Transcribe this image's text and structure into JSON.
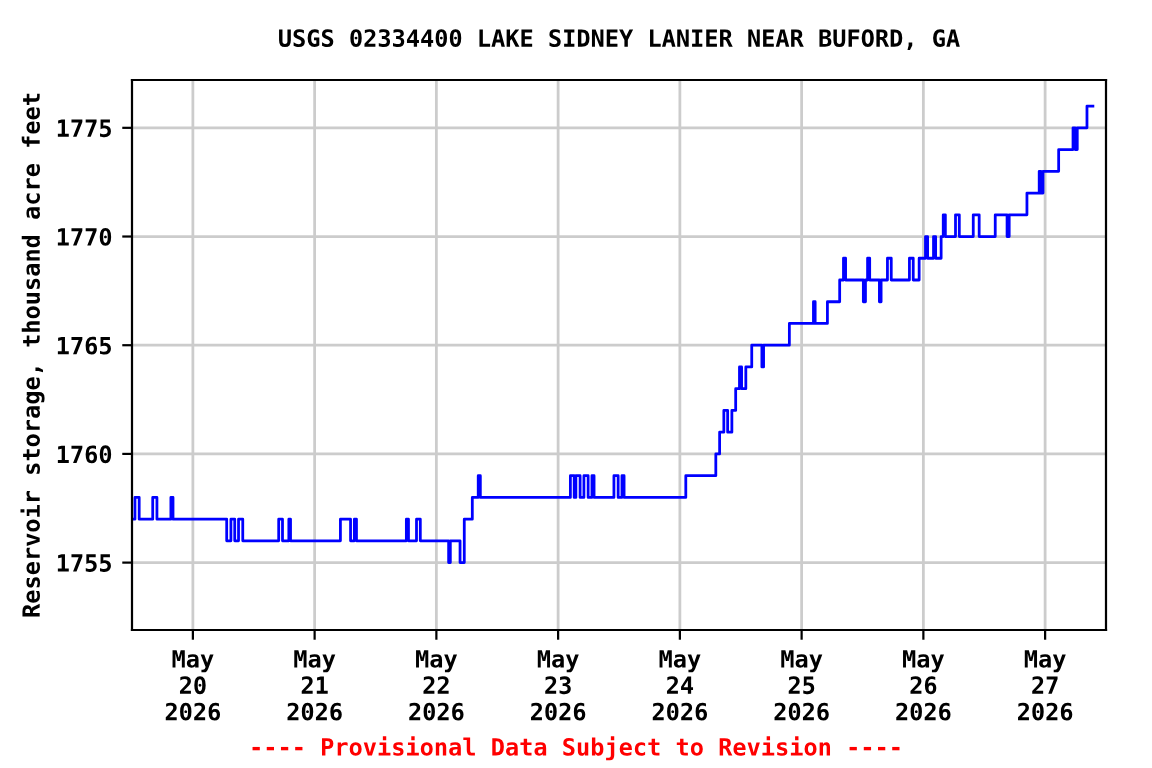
{
  "chart_data": {
    "type": "step",
    "title": "USGS 02334400 LAKE SIDNEY LANIER NEAR BUFORD, GA",
    "ylabel": "Reservoir storage, thousand acre feet",
    "x": [
      "2026-05-19T12:15",
      "2026-05-19T12:35",
      "2026-05-19T13:25",
      "2026-05-19T16:05",
      "2026-05-19T16:55",
      "2026-05-19T19:40",
      "2026-05-19T20:05",
      "2026-05-20T06:40",
      "2026-05-20T07:30",
      "2026-05-20T08:15",
      "2026-05-20T09:00",
      "2026-05-20T09:50",
      "2026-05-20T16:55",
      "2026-05-20T17:40",
      "2026-05-20T18:55",
      "2026-05-20T19:15",
      "2026-05-21T05:05",
      "2026-05-21T07:05",
      "2026-05-21T07:50",
      "2026-05-21T08:15",
      "2026-05-21T18:05",
      "2026-05-21T18:30",
      "2026-05-21T20:05",
      "2026-05-21T20:50",
      "2026-05-22T02:25",
      "2026-05-22T02:45",
      "2026-05-22T04:40",
      "2026-05-22T05:30",
      "2026-05-22T07:05",
      "2026-05-22T08:15",
      "2026-05-22T08:40",
      "2026-05-23T02:25",
      "2026-05-23T03:10",
      "2026-05-23T03:30",
      "2026-05-23T04:20",
      "2026-05-23T05:05",
      "2026-05-23T05:55",
      "2026-05-23T06:40",
      "2026-05-23T07:05",
      "2026-05-23T11:00",
      "2026-05-23T11:50",
      "2026-05-23T12:35",
      "2026-05-23T13:00",
      "2026-05-24T01:10",
      "2026-05-24T07:05",
      "2026-05-24T07:50",
      "2026-05-24T08:40",
      "2026-05-24T09:25",
      "2026-05-24T10:15",
      "2026-05-24T11:00",
      "2026-05-24T11:45",
      "2026-05-24T12:10",
      "2026-05-24T13:00",
      "2026-05-24T14:10",
      "2026-05-24T16:10",
      "2026-05-24T16:30",
      "2026-05-24T21:35",
      "2026-05-25T02:20",
      "2026-05-25T02:40",
      "2026-05-25T05:05",
      "2026-05-25T07:30",
      "2026-05-25T08:15",
      "2026-05-25T08:40",
      "2026-05-25T12:10",
      "2026-05-25T12:35",
      "2026-05-25T13:00",
      "2026-05-25T13:25",
      "2026-05-25T15:20",
      "2026-05-25T15:40",
      "2026-05-25T16:55",
      "2026-05-25T17:40",
      "2026-05-25T21:15",
      "2026-05-25T22:00",
      "2026-05-25T23:10",
      "2026-05-26T00:25",
      "2026-05-26T00:50",
      "2026-05-26T02:00",
      "2026-05-26T02:25",
      "2026-05-26T03:30",
      "2026-05-26T03:55",
      "2026-05-26T04:20",
      "2026-05-26T06:20",
      "2026-05-26T07:05",
      "2026-05-26T09:50",
      "2026-05-26T11:00",
      "2026-05-26T14:10",
      "2026-05-26T16:30",
      "2026-05-26T16:55",
      "2026-05-26T20:25",
      "2026-05-26T22:50",
      "2026-05-26T23:10",
      "2026-05-26T23:35",
      "2026-05-27T02:40",
      "2026-05-27T05:30",
      "2026-05-27T05:55",
      "2026-05-27T06:20",
      "2026-05-27T08:15",
      "2026-05-27T09:25"
    ],
    "series": [
      {
        "color": "#0000ff",
        "values": [
          1757,
          1758,
          1757,
          1758,
          1757,
          1758,
          1757,
          1756,
          1757,
          1756,
          1757,
          1756,
          1757,
          1756,
          1757,
          1756,
          1757,
          1756,
          1757,
          1756,
          1757,
          1756,
          1757,
          1756,
          1755,
          1756,
          1755,
          1757,
          1758,
          1759,
          1758,
          1759,
          1758,
          1759,
          1758,
          1759,
          1758,
          1759,
          1758,
          1759,
          1758,
          1759,
          1758,
          1759,
          1760,
          1761,
          1762,
          1761,
          1762,
          1763,
          1764,
          1763,
          1764,
          1765,
          1764,
          1765,
          1766,
          1767,
          1766,
          1767,
          1768,
          1769,
          1768,
          1767,
          1768,
          1769,
          1768,
          1767,
          1768,
          1769,
          1768,
          1769,
          1768,
          1769,
          1770,
          1769,
          1770,
          1769,
          1770,
          1771,
          1770,
          1771,
          1770,
          1771,
          1770,
          1771,
          1770,
          1771,
          1772,
          1773,
          1772,
          1773,
          1774,
          1775,
          1774,
          1775,
          1776,
          1776
        ]
      }
    ],
    "xlim": [
      "2026-05-19T12:00",
      "2026-05-27T12:00"
    ],
    "xticks": [
      {
        "value": "2026-05-20",
        "label": "May\n20\n2026"
      },
      {
        "value": "2026-05-21",
        "label": "May\n21\n2026"
      },
      {
        "value": "2026-05-22",
        "label": "May\n22\n2026"
      },
      {
        "value": "2026-05-23",
        "label": "May\n23\n2026"
      },
      {
        "value": "2026-05-24",
        "label": "May\n24\n2026"
      },
      {
        "value": "2026-05-25",
        "label": "May\n25\n2026"
      },
      {
        "value": "2026-05-26",
        "label": "May\n26\n2026"
      },
      {
        "value": "2026-05-27",
        "label": "May\n27\n2026"
      }
    ],
    "ylim": [
      1751.9,
      1777.2
    ],
    "yticks": [
      1755,
      1760,
      1765,
      1770,
      1775
    ],
    "grid": true,
    "annotations": [
      "---- Provisional Data Subject to Revision ----"
    ]
  }
}
